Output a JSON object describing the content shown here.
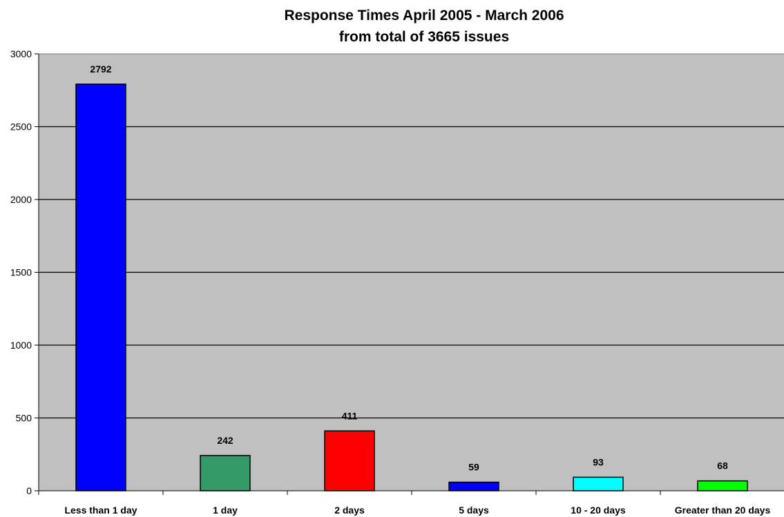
{
  "chart_data": {
    "type": "bar",
    "title": "Response Times April 2005 - March 2006",
    "subtitle": "from total of 3665 issues",
    "xlabel": "",
    "ylabel": "",
    "categories": [
      "Less than 1 day",
      "1 day",
      "2 days",
      "5 days",
      "10 - 20 days",
      "Greater than 20 days"
    ],
    "values": [
      2792,
      242,
      411,
      59,
      93,
      68
    ],
    "data_labels": [
      "2792",
      "242",
      "411",
      "59",
      "93",
      "68"
    ],
    "bar_colors": [
      "#0000ff",
      "#339966",
      "#ff0000",
      "#0000ff",
      "#00ffff",
      "#00ff00"
    ],
    "ylim": [
      0,
      3000
    ],
    "yticks": [
      0,
      500,
      1000,
      1500,
      2000,
      2500,
      3000
    ],
    "ytick_labels": [
      "0",
      "500",
      "1000",
      "1500",
      "2000",
      "2500",
      "3000"
    ],
    "grid": true,
    "legend": "none",
    "plot_background": "#c0c0c0"
  }
}
